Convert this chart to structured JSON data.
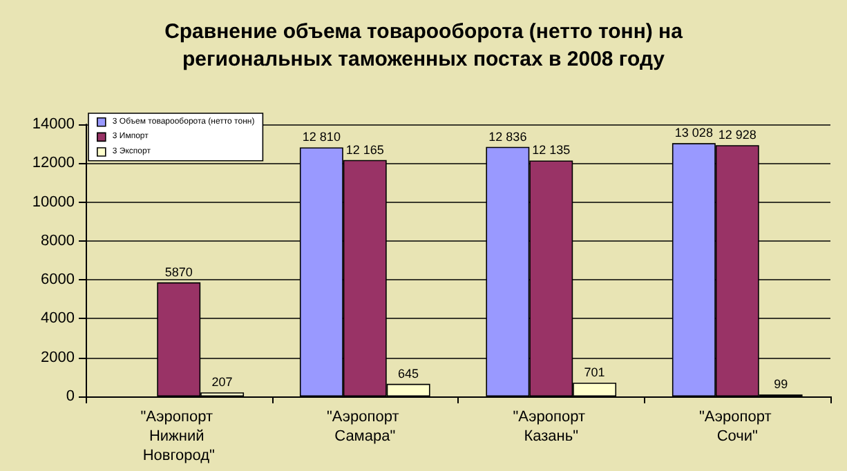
{
  "chart_data": {
    "type": "bar",
    "title": "Сравнение объема товарооборота (нетто тонн) на\nрегиональных таможенных постах в 2008 году",
    "categories": [
      "\"Аэропорт Нижний Новгород\"",
      "\"Аэропорт Самара\"",
      "\"Аэропорт Казань\"",
      "\"Аэропорт Сочи\""
    ],
    "series": [
      {
        "name": "3 Объем товарооборота (нетто тонн)",
        "color": "#9999ff",
        "values": [
          null,
          12810,
          12836,
          13028
        ],
        "value_labels": [
          null,
          "12 810",
          "12 836",
          "13 028"
        ]
      },
      {
        "name": "3 Импорт",
        "color": "#993366",
        "values": [
          5870,
          12165,
          12135,
          12928
        ],
        "value_labels": [
          "5870",
          "12 165",
          "12 135",
          "12 928"
        ]
      },
      {
        "name": "3 Экспорт",
        "color": "#ffffcc",
        "values": [
          207,
          645,
          701,
          99
        ],
        "value_labels": [
          "207",
          "645",
          "701",
          "99"
        ]
      }
    ],
    "ylim": [
      0,
      14000
    ],
    "yticks": [
      0,
      2000,
      4000,
      6000,
      8000,
      10000,
      12000,
      14000
    ],
    "grid": "y",
    "legend": "top left"
  }
}
